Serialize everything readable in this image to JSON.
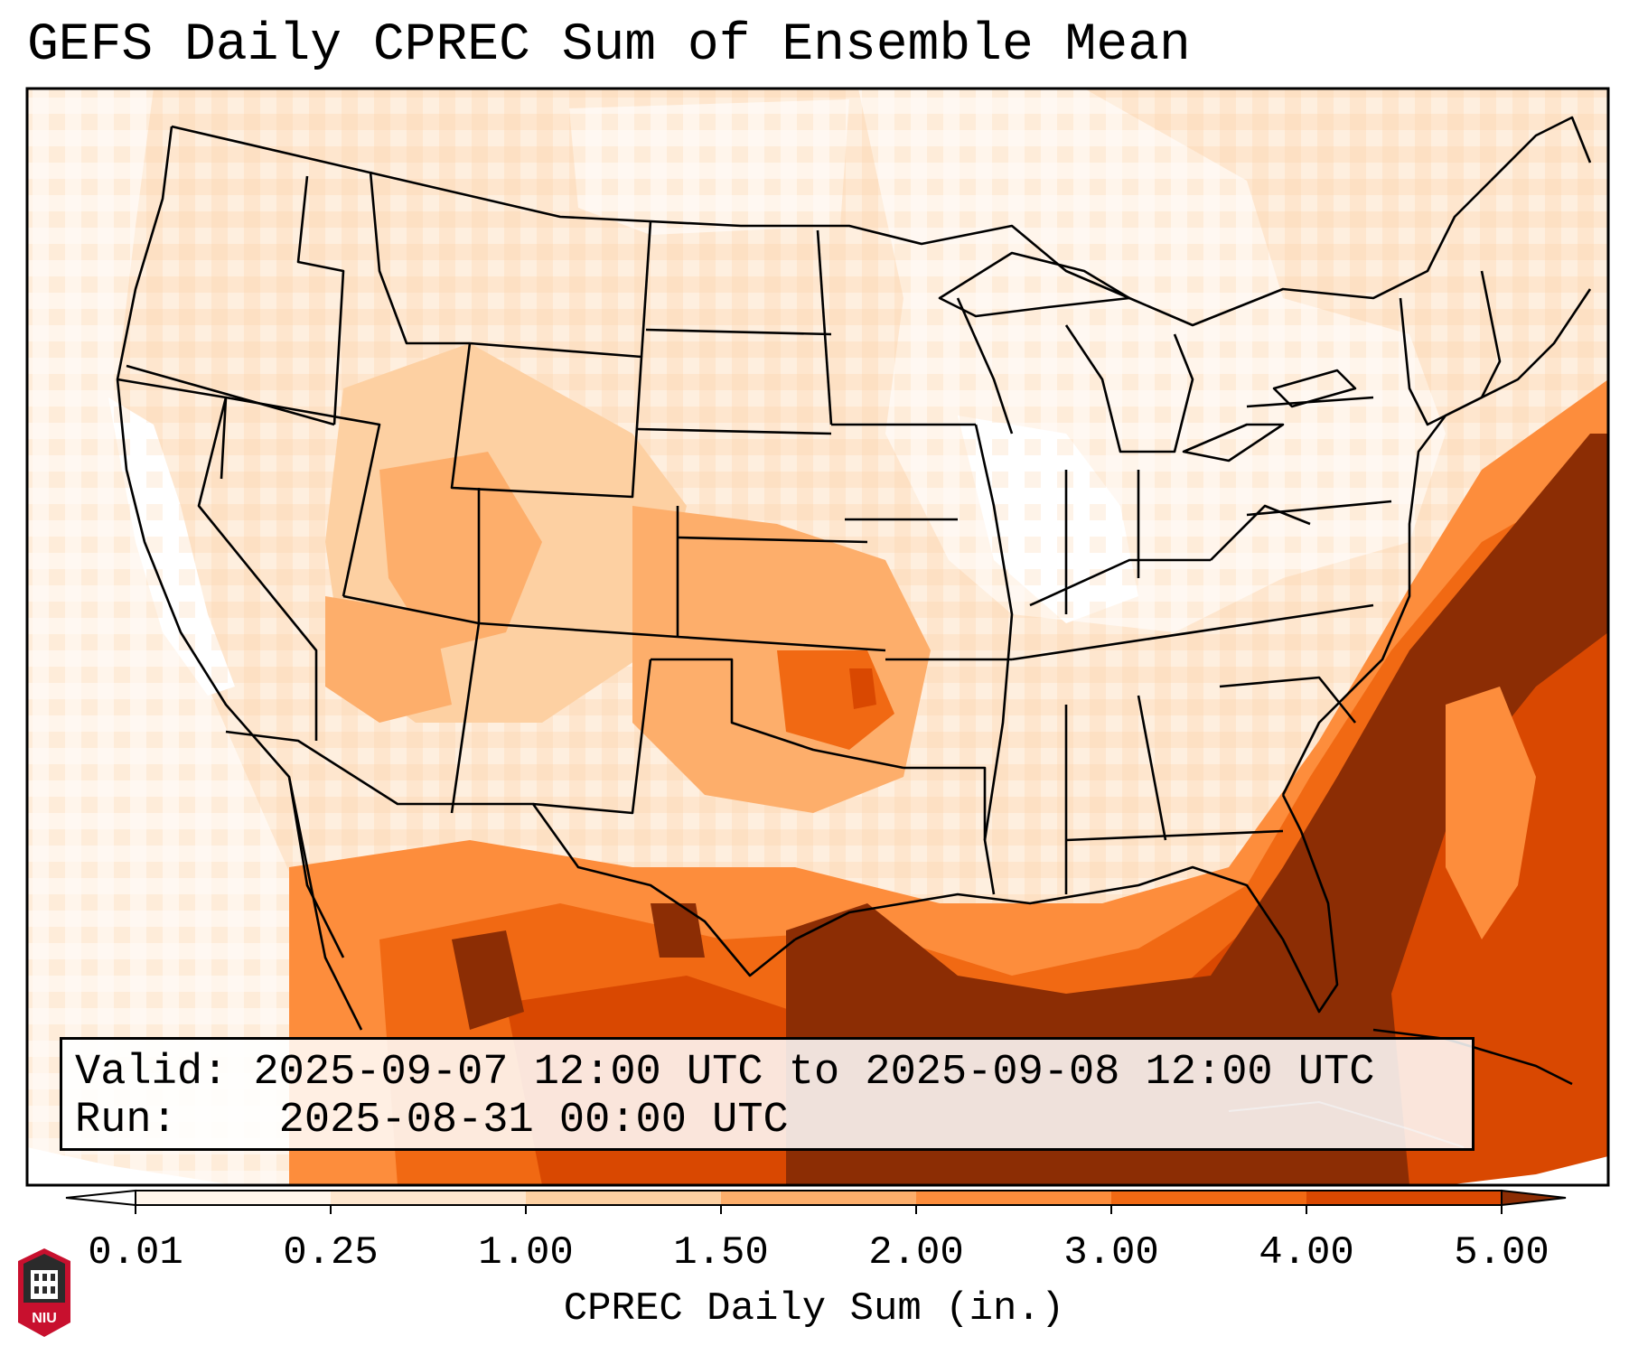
{
  "title": "GEFS Daily CPREC Sum of Ensemble Mean",
  "info": {
    "valid_label": "Valid:",
    "valid_value": "2025-09-07 12:00 UTC to 2025-09-08 12:00 UTC",
    "run_label": "Run:",
    "run_value": "2025-08-31 00:00 UTC"
  },
  "colorbar": {
    "label": "CPREC Daily Sum (in.)",
    "ticks": [
      "0.01",
      "0.25",
      "1.00",
      "1.50",
      "2.00",
      "3.00",
      "4.00",
      "5.00"
    ],
    "bins": [
      {
        "from": 0.01,
        "to": 0.25,
        "color": "#fff5eb"
      },
      {
        "from": 0.25,
        "to": 1.0,
        "color": "#fee6ce"
      },
      {
        "from": 1.0,
        "to": 1.5,
        "color": "#fdd0a2"
      },
      {
        "from": 1.5,
        "to": 2.0,
        "color": "#fdae6b"
      },
      {
        "from": 2.0,
        "to": 3.0,
        "color": "#fd8d3c"
      },
      {
        "from": 3.0,
        "to": 4.0,
        "color": "#f16913"
      },
      {
        "from": 4.0,
        "to": 5.0,
        "color": "#d94801"
      }
    ],
    "over_color": "#8c2d04",
    "under_color": "#ffffff"
  },
  "logo": {
    "text": "NIU",
    "color": "#c8102e"
  }
}
